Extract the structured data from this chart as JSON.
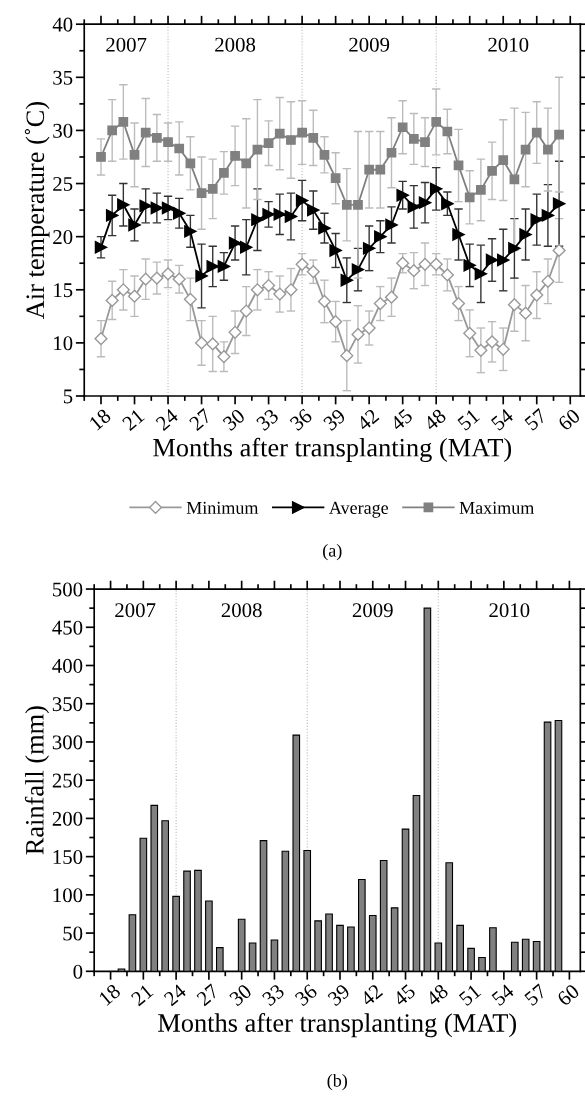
{
  "chart_data": [
    {
      "type": "line",
      "xlabel": "Months after transplanting (MAT)",
      "ylabel": "Air temperature (˚C)",
      "x": [
        18,
        19,
        20,
        21,
        22,
        23,
        24,
        25,
        26,
        27,
        28,
        29,
        30,
        31,
        32,
        33,
        34,
        35,
        36,
        37,
        38,
        39,
        40,
        41,
        42,
        43,
        44,
        45,
        46,
        47,
        48,
        49,
        50,
        51,
        52,
        53,
        54,
        55,
        56,
        57,
        58,
        59
      ],
      "xlim": [
        16.5,
        60.9
      ],
      "ylim": [
        5,
        40
      ],
      "yticks": [
        5,
        10,
        15,
        20,
        25,
        30,
        35,
        40
      ],
      "xticks": [
        18,
        21,
        24,
        27,
        30,
        33,
        36,
        39,
        42,
        45,
        48,
        51,
        54,
        57,
        60
      ],
      "legend": "bottom",
      "series": [
        {
          "name": "Minimum",
          "color": "#999999",
          "marker": "diamond",
          "values": [
            10.4,
            14.0,
            15.0,
            14.4,
            16.0,
            16.1,
            16.5,
            16.0,
            14.1,
            10.0,
            9.9,
            8.7,
            11.0,
            13.0,
            15.0,
            15.4,
            14.6,
            15.0,
            17.4,
            16.7,
            13.9,
            12.0,
            8.8,
            10.8,
            11.4,
            13.7,
            14.3,
            17.5,
            16.8,
            17.4,
            17.4,
            16.4,
            13.7,
            10.9,
            9.3,
            10.1,
            9.4,
            13.6,
            12.8,
            14.5,
            15.8,
            18.7
          ],
          "errors": [
            1.7,
            1.8,
            1.9,
            1.9,
            1.9,
            1.5,
            1.3,
            1.3,
            2.0,
            2.1,
            2.6,
            1.4,
            2.0,
            2.3,
            1.9,
            1.3,
            1.7,
            2.0,
            1.0,
            1.1,
            2.0,
            1.9,
            3.3,
            2.7,
            1.6,
            1.6,
            1.8,
            0.9,
            1.7,
            2.0,
            1.0,
            1.5,
            1.6,
            2.2,
            2.1,
            1.9,
            2.0,
            2.5,
            2.6,
            2.2,
            2.1,
            3.0
          ]
        },
        {
          "name": "Average",
          "color": "#000000",
          "marker": "triangle",
          "values": [
            19.0,
            22.0,
            23.0,
            21.1,
            22.9,
            22.7,
            22.7,
            22.2,
            20.5,
            16.3,
            17.2,
            17.2,
            19.4,
            19.0,
            21.6,
            22.1,
            22.1,
            21.9,
            23.4,
            22.5,
            20.8,
            18.7,
            15.9,
            16.9,
            18.9,
            20.0,
            21.1,
            23.9,
            22.8,
            23.2,
            24.5,
            23.1,
            20.2,
            17.3,
            16.5,
            17.8,
            17.8,
            18.9,
            20.2,
            21.6,
            22.0,
            23.1
          ],
          "errors": [
            1.0,
            1.9,
            2.0,
            1.5,
            1.6,
            1.4,
            1.1,
            1.4,
            1.5,
            3.0,
            1.9,
            1.3,
            1.6,
            2.6,
            2.9,
            1.2,
            1.9,
            2.2,
            1.9,
            1.8,
            1.4,
            1.6,
            2.1,
            2.0,
            2.1,
            1.5,
            1.7,
            1.3,
            2.0,
            1.9,
            2.0,
            1.1,
            2.4,
            2.0,
            2.7,
            2.0,
            2.9,
            2.8,
            2.4,
            2.4,
            2.9,
            4.0
          ]
        },
        {
          "name": "Maximum",
          "color": "#808080",
          "marker": "square",
          "values": [
            27.5,
            30.0,
            30.8,
            27.7,
            29.8,
            29.3,
            28.9,
            28.3,
            26.9,
            24.1,
            24.5,
            26.0,
            27.6,
            26.9,
            28.2,
            28.8,
            29.7,
            29.1,
            29.8,
            29.3,
            27.7,
            25.5,
            23.0,
            23.0,
            26.3,
            26.3,
            27.9,
            30.3,
            29.2,
            28.9,
            30.8,
            29.9,
            26.7,
            23.7,
            24.4,
            26.2,
            27.2,
            25.4,
            28.2,
            29.8,
            28.2,
            29.6
          ],
          "errors": [
            1.7,
            2.9,
            3.5,
            3.0,
            3.2,
            2.2,
            1.8,
            2.5,
            2.5,
            3.4,
            2.8,
            2.0,
            2.8,
            4.2,
            4.7,
            2.1,
            3.4,
            3.6,
            3.0,
            2.6,
            1.7,
            2.4,
            3.4,
            6.9,
            3.6,
            3.6,
            3.3,
            2.5,
            2.4,
            2.3,
            3.1,
            2.1,
            3.4,
            2.5,
            2.9,
            2.7,
            3.8,
            6.7,
            3.5,
            2.9,
            3.9,
            5.4
          ]
        }
      ],
      "ref_lines": [
        {
          "axis": "x",
          "value": 24,
          "color": "#bbbbbb",
          "line_style": "dotted"
        },
        {
          "axis": "x",
          "value": 36,
          "color": "#bbbbbb",
          "line_style": "dotted"
        },
        {
          "axis": "x",
          "value": 48,
          "color": "#bbbbbb",
          "line_style": "dotted"
        }
      ],
      "annotations": [
        "2007",
        "2008",
        "2009",
        "2010",
        "(a)"
      ]
    },
    {
      "type": "bar",
      "xlabel": "Months after transplanting (MAT)",
      "ylabel": "Rainfall (mm)",
      "x": [
        19,
        20,
        21,
        22,
        23,
        24,
        25,
        26,
        27,
        28,
        29,
        30,
        31,
        32,
        33,
        34,
        35,
        36,
        37,
        38,
        39,
        40,
        41,
        42,
        43,
        44,
        45,
        46,
        47,
        48,
        49,
        50,
        51,
        52,
        53,
        54,
        55,
        56,
        57,
        58,
        59
      ],
      "xlim": [
        16.5,
        61.0
      ],
      "ylim": [
        0,
        500
      ],
      "yticks": [
        0,
        50,
        100,
        150,
        200,
        250,
        300,
        350,
        400,
        450,
        500
      ],
      "xticks": [
        18,
        21,
        24,
        27,
        30,
        33,
        36,
        39,
        42,
        45,
        48,
        51,
        54,
        57,
        60
      ],
      "color": "#808080",
      "values": [
        3,
        74,
        174,
        217,
        197,
        98,
        131,
        132,
        92,
        31,
        null,
        68,
        37,
        171,
        41,
        157,
        309,
        158,
        66,
        75,
        60,
        58,
        120,
        73,
        145,
        83,
        186,
        230,
        475,
        37,
        142,
        60,
        30,
        18,
        57,
        null,
        38,
        42,
        39,
        326,
        328
      ],
      "ref_lines": [
        {
          "axis": "x",
          "value": 24,
          "color": "#bbbbbb",
          "line_style": "dotted"
        },
        {
          "axis": "x",
          "value": 36,
          "color": "#bbbbbb",
          "line_style": "dotted"
        },
        {
          "axis": "x",
          "value": 48,
          "color": "#bbbbbb",
          "line_style": "dotted"
        }
      ],
      "annotations": [
        "2007",
        "2008",
        "2009",
        "2010",
        "(b)"
      ]
    }
  ]
}
